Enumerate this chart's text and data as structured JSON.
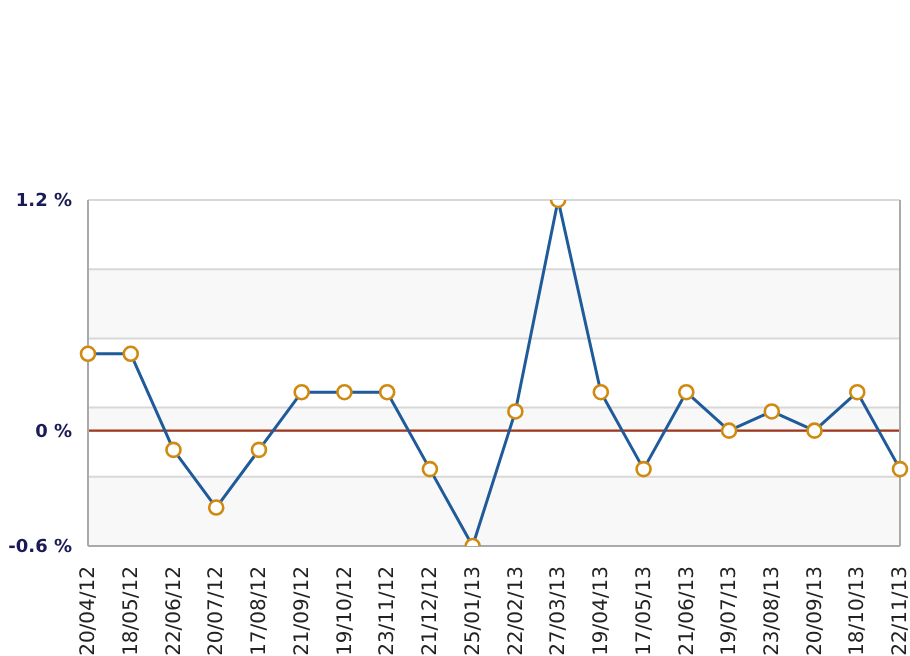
{
  "chart_data": {
    "type": "line",
    "categories": [
      "20/04/12",
      "18/05/12",
      "22/06/12",
      "20/07/12",
      "17/08/12",
      "21/09/12",
      "19/10/12",
      "23/11/12",
      "21/12/12",
      "25/01/13",
      "22/02/13",
      "27/03/13",
      "19/04/13",
      "17/05/13",
      "21/06/13",
      "19/07/13",
      "23/08/13",
      "20/09/13",
      "18/10/13",
      "22/11/13"
    ],
    "series": [
      {
        "color": "#1f5a9a",
        "values": [
          0.4,
          0.4,
          -0.1,
          -0.4,
          -0.1,
          0.2,
          0.2,
          0.2,
          -0.2,
          -0.6,
          0.1,
          1.2,
          0.2,
          -0.2,
          0.2,
          0,
          0.1,
          0,
          0.2,
          -0.2
        ]
      }
    ],
    "ylim": [
      -0.6,
      1.2
    ],
    "yticks": [
      {
        "value": -0.6,
        "label": "-0.6 %"
      },
      {
        "value": -0.24,
        "label": null
      },
      {
        "value": 0,
        "label": "0 %"
      },
      {
        "value": 0.12,
        "label": null
      },
      {
        "value": 0.48,
        "label": null
      },
      {
        "value": 0.84,
        "label": null
      },
      {
        "value": 1.2,
        "label": "1.2 %"
      }
    ],
    "ref_lines": [
      {
        "axis": "y",
        "value": 0,
        "color": "#a0391f"
      }
    ],
    "grid": "y",
    "marker": "circle"
  }
}
